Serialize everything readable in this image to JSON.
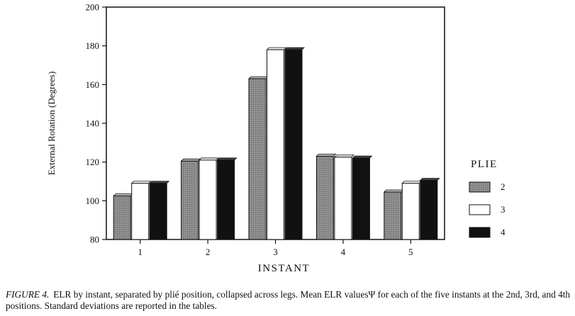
{
  "chart_data": {
    "type": "bar",
    "categories": [
      "1",
      "2",
      "3",
      "4",
      "5"
    ],
    "series": [
      {
        "name": "2",
        "values": [
          102.5,
          120.5,
          163,
          123,
          104.5
        ]
      },
      {
        "name": "3",
        "values": [
          109,
          121,
          178,
          122.5,
          109
        ]
      },
      {
        "name": "4",
        "values": [
          109,
          121,
          178,
          122,
          110.5
        ]
      }
    ],
    "title": "",
    "xlabel": "INSTANT",
    "ylabel": "External Rotation (Degrees)",
    "ylim": [
      80,
      200
    ],
    "yticks": [
      "80",
      "100",
      "120",
      "140",
      "160",
      "180",
      "200"
    ],
    "legend_title": "PLIE",
    "legend_position": "right",
    "grid": false,
    "series_colors": [
      "#8a8a8a",
      "#ffffff",
      "#111111"
    ]
  },
  "caption": {
    "label": "FIGURE 4.",
    "text": "ELR by instant, separated by plié position, collapsed across legs. Mean ELR valuesΨ for each of the five instants at the 2nd, 3rd, and 4th positions. Standard deviations are reported in the tables."
  }
}
